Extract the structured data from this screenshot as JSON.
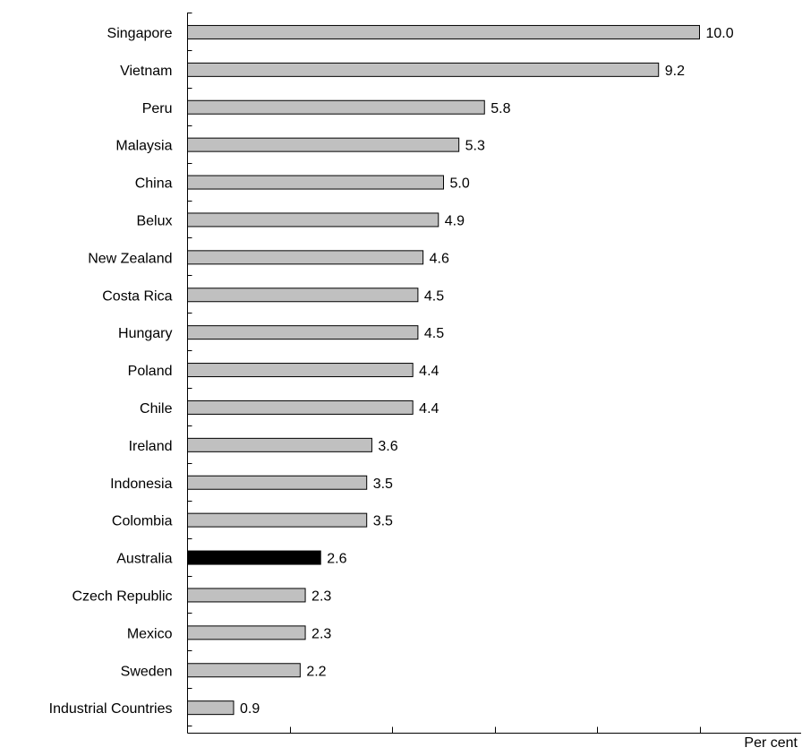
{
  "chart_data": {
    "type": "bar",
    "orientation": "horizontal",
    "categories": [
      "Singapore",
      "Vietnam",
      "Peru",
      "Malaysia",
      "China",
      "Belux",
      "New Zealand",
      "Costa Rica",
      "Hungary",
      "Poland",
      "Chile",
      "Ireland",
      "Indonesia",
      "Colombia",
      "Australia",
      "Czech Republic",
      "Mexico",
      "Sweden",
      "Industrial Countries"
    ],
    "values": [
      10.0,
      9.2,
      5.8,
      5.3,
      5.0,
      4.9,
      4.6,
      4.5,
      4.5,
      4.4,
      4.4,
      3.6,
      3.5,
      3.5,
      2.6,
      2.3,
      2.3,
      2.2,
      0.9
    ],
    "value_labels": [
      "10.0",
      "9.2",
      "5.8",
      "5.3",
      "5.0",
      "4.9",
      "4.6",
      "4.5",
      "4.5",
      "4.4",
      "4.4",
      "3.6",
      "3.5",
      "3.5",
      "2.6",
      "2.3",
      "2.3",
      "2.2",
      "0.9"
    ],
    "highlight": "Australia",
    "xlim": [
      0,
      12
    ],
    "xtick_step": 2,
    "x_unit_label": "Per cent",
    "grid": false,
    "legend": "none",
    "colors": {
      "bar": "#c0c0c0",
      "bar_highlight": "#000000",
      "bar_outline": "#000000",
      "axis": "#000000"
    }
  }
}
